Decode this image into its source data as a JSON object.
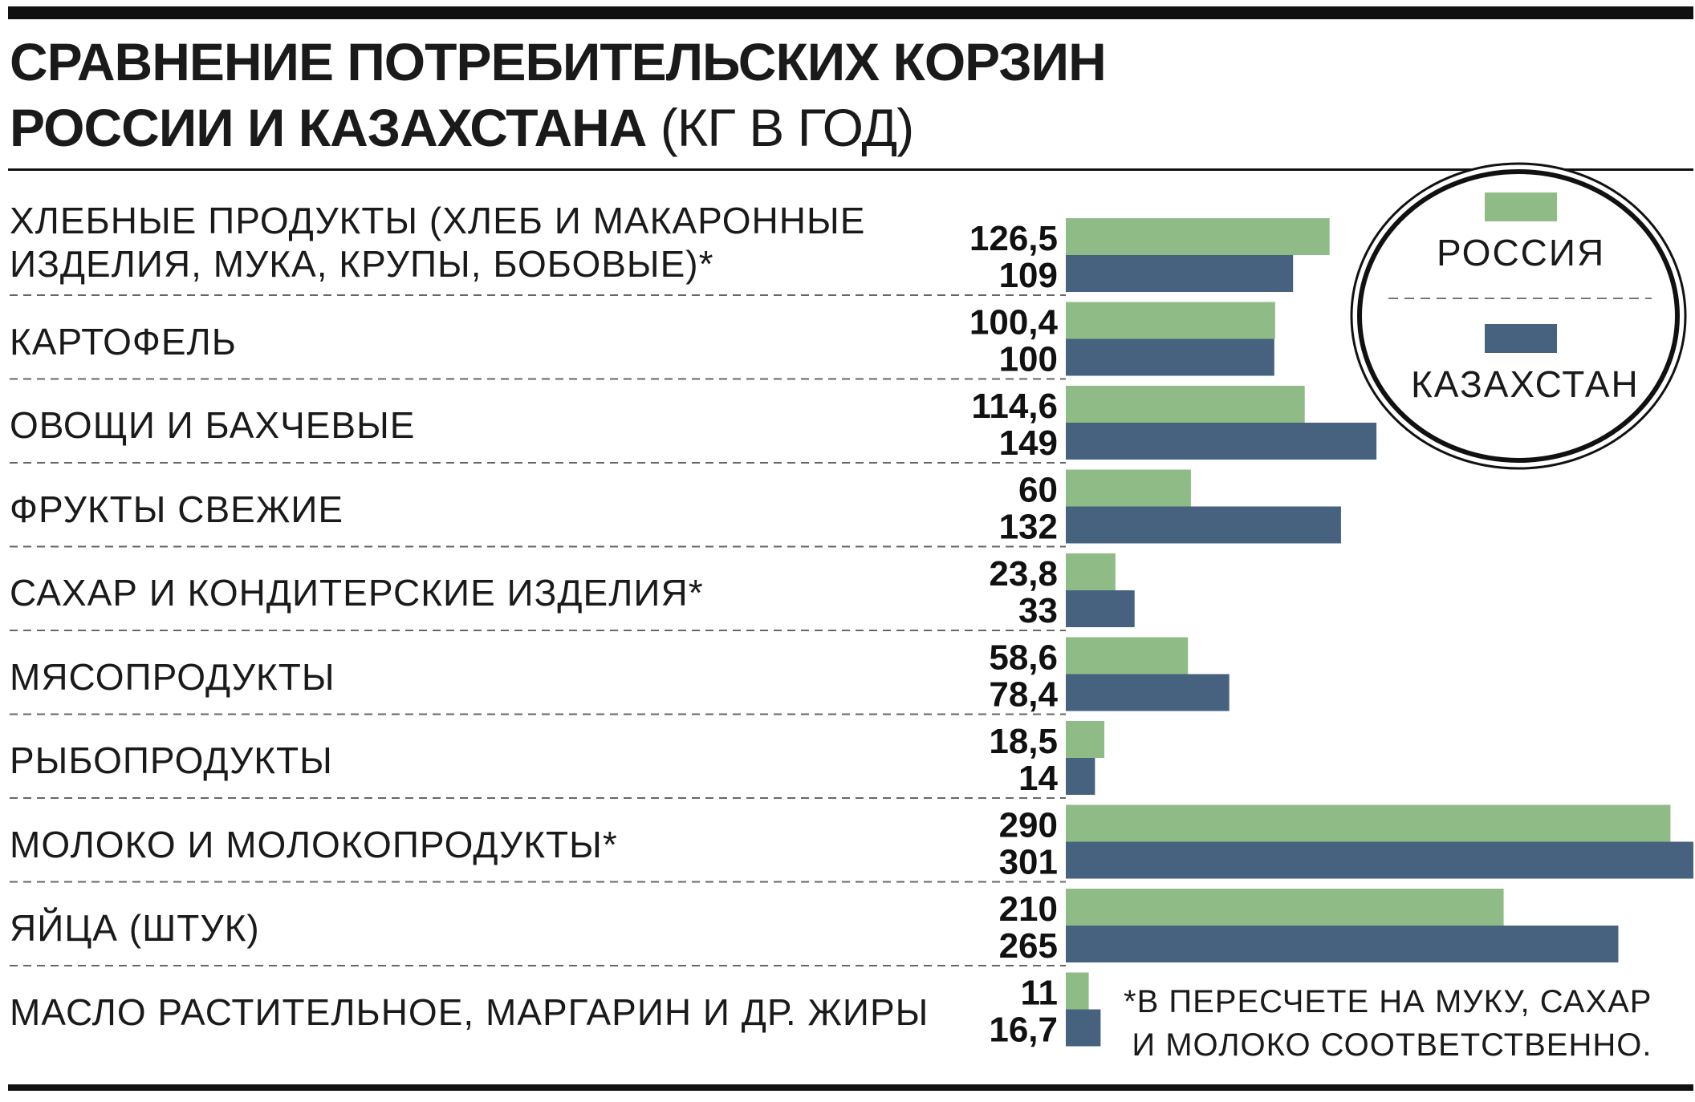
{
  "title": {
    "line1": "СРАВНЕНИЕ ПОТРЕБИТЕЛЬСКИХ КОРЗИН",
    "line2": "РОССИИ И КАЗАХСТАНА",
    "unit": "(КГ В ГОД)"
  },
  "legend": {
    "russia": "РОССИЯ",
    "kazakhstan": "КАЗАХСТАН"
  },
  "footnote": {
    "line1": "*В ПЕРЕСЧЕТЕ НА МУКУ, САХАР",
    "line2": "И МОЛОКО СООТВЕТСТВЕННО."
  },
  "colors": {
    "russia": "#8fbc86",
    "kazakhstan": "#46627e"
  },
  "chart_data": {
    "type": "bar",
    "orientation": "horizontal",
    "categories": [
      "ХЛЕБНЫЕ ПРОДУКТЫ (ХЛЕБ И МАКАРОННЫЕ ИЗДЕЛИЯ, МУКА, КРУПЫ, БОБОВЫЕ)*",
      "КАРТОФЕЛЬ",
      "ОВОЩИ И БАХЧЕВЫЕ",
      "ФРУКТЫ СВЕЖИЕ",
      "САХАР И КОНДИТЕРСКИЕ ИЗДЕЛИЯ*",
      "МЯСОПРОДУКТЫ",
      "РЫБОПРОДУКТЫ",
      "МОЛОКО И МОЛОКОПРОДУКТЫ*",
      "ЯЙЦА (ШТУК)",
      "МАСЛО РАСТИТЕЛЬНОЕ, МАРГАРИН И ДР. ЖИРЫ"
    ],
    "category_lines": [
      [
        "ХЛЕБНЫЕ ПРОДУКТЫ (ХЛЕБ И МАКАРОННЫЕ",
        "ИЗДЕЛИЯ, МУКА, КРУПЫ, БОБОВЫЕ)*"
      ],
      [
        "КАРТОФЕЛЬ"
      ],
      [
        "ОВОЩИ И БАХЧЕВЫЕ"
      ],
      [
        "ФРУКТЫ СВЕЖИЕ"
      ],
      [
        "САХАР И КОНДИТЕРСКИЕ ИЗДЕЛИЯ*"
      ],
      [
        "МЯСОПРОДУКТЫ"
      ],
      [
        "РЫБОПРОДУКТЫ"
      ],
      [
        "МОЛОКО И МОЛОКОПРОДУКТЫ*"
      ],
      [
        "ЯЙЦА (ШТУК)"
      ],
      [
        "МАСЛО РАСТИТЕЛЬНОЕ, МАРГАРИН И ДР. ЖИРЫ"
      ]
    ],
    "series": [
      {
        "name": "РОССИЯ",
        "values": [
          126.5,
          100.4,
          114.6,
          60,
          23.8,
          58.6,
          18.5,
          290,
          210,
          11
        ],
        "labels": [
          "126,5",
          "100,4",
          "114,6",
          "60",
          "23,8",
          "58,6",
          "18,5",
          "290",
          "210",
          "11"
        ]
      },
      {
        "name": "КАЗАХСТАН",
        "values": [
          109,
          100,
          149,
          132,
          33,
          78.4,
          14,
          301,
          265,
          16.7
        ],
        "labels": [
          "109",
          "100",
          "149",
          "132",
          "33",
          "78,4",
          "14",
          "301",
          "265",
          "16,7"
        ]
      }
    ],
    "xlim": [
      0,
      301
    ],
    "grid": false,
    "legend_position": "top-right"
  }
}
